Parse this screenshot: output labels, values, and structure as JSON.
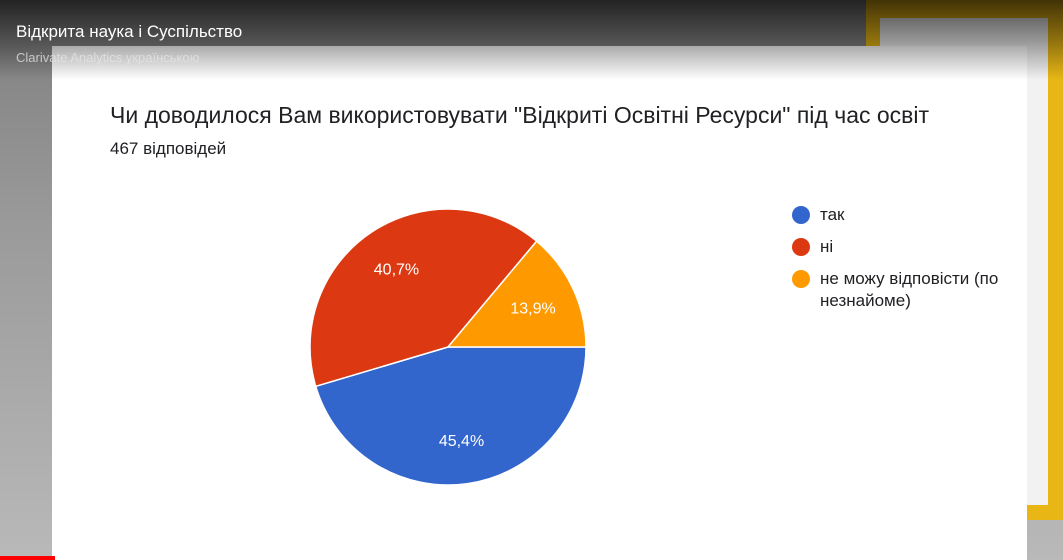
{
  "player": {
    "video_title": "Відкрита наука і Суспільство",
    "channel_name": "Clarivate Analytics українською",
    "progress_fraction": 0.052
  },
  "slide": {
    "question": "Чи доводилося Вам використовувати \"Відкриті Освітні Ресурси\" під час освіт",
    "responses": "467 відповідей"
  },
  "chart_data": {
    "type": "pie",
    "title": "Чи доводилося Вам використовувати \"Відкриті Освітні Ресурси\" під час освіт",
    "subtitle": "467 відповідей",
    "categories": [
      "так",
      "ні",
      "не можу відповісти (по незнайоме)"
    ],
    "values": [
      45.4,
      40.7,
      13.9
    ],
    "labels": [
      "45,4%",
      "40,7%",
      "13,9%"
    ],
    "colors": [
      "#3366cc",
      "#dc3912",
      "#ff9900"
    ],
    "legend_position": "right",
    "legend_labels": [
      "так",
      "ні",
      "не можу відповісти (по",
      "незнайоме)"
    ]
  }
}
